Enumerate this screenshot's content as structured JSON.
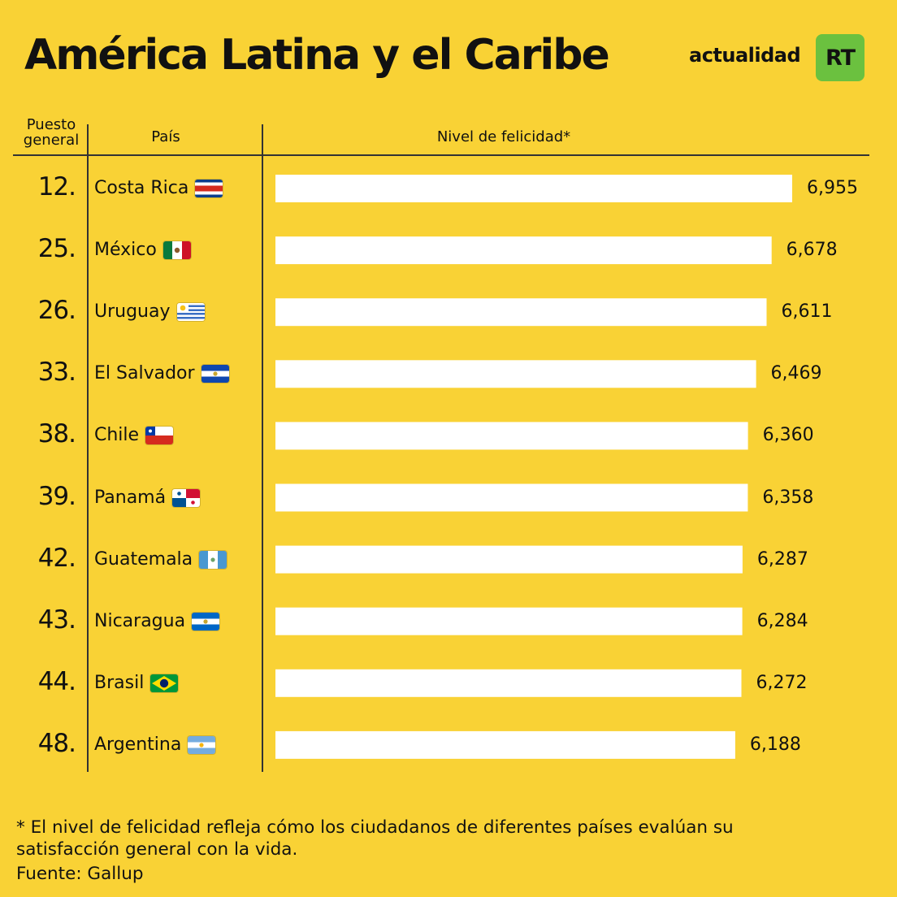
{
  "header": {
    "title": "América Latina y el Caribe",
    "brand": "actualidad",
    "logo": "RT"
  },
  "columns": {
    "rank": "Puesto general",
    "country": "País",
    "level": "Nivel de felicidad*"
  },
  "chart_data": {
    "type": "bar",
    "orientation": "horizontal",
    "title": "América Latina y el Caribe",
    "categories": [
      "Costa Rica",
      "México",
      "Uruguay",
      "El Salvador",
      "Chile",
      "Panamá",
      "Guatemala",
      "Nicaragua",
      "Brasil",
      "Argentina"
    ],
    "ranks": [
      "12.",
      "25.",
      "26.",
      "33.",
      "38.",
      "39.",
      "42.",
      "43.",
      "44.",
      "48."
    ],
    "values": [
      6.955,
      6.678,
      6.611,
      6.469,
      6.36,
      6.358,
      6.287,
      6.284,
      6.272,
      6.188
    ],
    "value_labels": [
      "6,955",
      "6,678",
      "6,611",
      "6,469",
      "6,360",
      "6,358",
      "6,287",
      "6,284",
      "6,272",
      "6,188"
    ],
    "flags": [
      "flag-costa-rica",
      "flag-mexico",
      "flag-uruguay",
      "flag-el-salvador",
      "flag-chile",
      "flag-panama",
      "flag-guatemala",
      "flag-nicaragua",
      "flag-brazil",
      "flag-argentina"
    ],
    "bar_color": "#FFFFFF",
    "background_color": "#F9D235"
  },
  "footer": {
    "note": "* El nivel de felicidad refleja cómo los ciudadanos de diferentes países evalúan su satisfacción general con la vida.",
    "source": "Fuente: Gallup"
  },
  "colors": {
    "background": "#F9D235",
    "bar": "#FFFFFF",
    "logo": "#6BC13F"
  }
}
